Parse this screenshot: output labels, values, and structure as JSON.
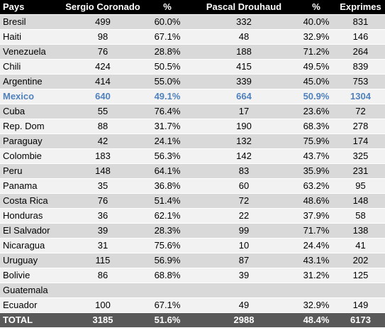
{
  "headers": [
    "Pays",
    "Sergio Coronado",
    "%",
    "Pascal Drouhaud",
    "%",
    "Exprimes"
  ],
  "rows": [
    {
      "pays": "Bresil",
      "sergio": "499",
      "sergio_pct": "60.0%",
      "pascal": "332",
      "pascal_pct": "40.0%",
      "exprimes": "831"
    },
    {
      "pays": "Haiti",
      "sergio": "98",
      "sergio_pct": "67.1%",
      "pascal": "48",
      "pascal_pct": "32.9%",
      "exprimes": "146"
    },
    {
      "pays": "Venezuela",
      "sergio": "76",
      "sergio_pct": "28.8%",
      "pascal": "188",
      "pascal_pct": "71.2%",
      "exprimes": "264"
    },
    {
      "pays": "Chili",
      "sergio": "424",
      "sergio_pct": "50.5%",
      "pascal": "415",
      "pascal_pct": "49.5%",
      "exprimes": "839"
    },
    {
      "pays": "Argentine",
      "sergio": "414",
      "sergio_pct": "55.0%",
      "pascal": "339",
      "pascal_pct": "45.0%",
      "exprimes": "753"
    },
    {
      "pays": "Mexico",
      "sergio": "640",
      "sergio_pct": "49.1%",
      "pascal": "664",
      "pascal_pct": "50.9%",
      "exprimes": "1304",
      "highlight": true
    },
    {
      "pays": "Cuba",
      "sergio": "55",
      "sergio_pct": "76.4%",
      "pascal": "17",
      "pascal_pct": "23.6%",
      "exprimes": "72"
    },
    {
      "pays": "Rep. Dom",
      "sergio": "88",
      "sergio_pct": "31.7%",
      "pascal": "190",
      "pascal_pct": "68.3%",
      "exprimes": "278"
    },
    {
      "pays": "Paraguay",
      "sergio": "42",
      "sergio_pct": "24.1%",
      "pascal": "132",
      "pascal_pct": "75.9%",
      "exprimes": "174"
    },
    {
      "pays": "Colombie",
      "sergio": "183",
      "sergio_pct": "56.3%",
      "pascal": "142",
      "pascal_pct": "43.7%",
      "exprimes": "325"
    },
    {
      "pays": "Peru",
      "sergio": "148",
      "sergio_pct": "64.1%",
      "pascal": "83",
      "pascal_pct": "35.9%",
      "exprimes": "231"
    },
    {
      "pays": "Panama",
      "sergio": "35",
      "sergio_pct": "36.8%",
      "pascal": "60",
      "pascal_pct": "63.2%",
      "exprimes": "95"
    },
    {
      "pays": "Costa Rica",
      "sergio": "76",
      "sergio_pct": "51.4%",
      "pascal": "72",
      "pascal_pct": "48.6%",
      "exprimes": "148"
    },
    {
      "pays": "Honduras",
      "sergio": "36",
      "sergio_pct": "62.1%",
      "pascal": "22",
      "pascal_pct": "37.9%",
      "exprimes": "58"
    },
    {
      "pays": "El Salvador",
      "sergio": "39",
      "sergio_pct": "28.3%",
      "pascal": "99",
      "pascal_pct": "71.7%",
      "exprimes": "138"
    },
    {
      "pays": "Nicaragua",
      "sergio": "31",
      "sergio_pct": "75.6%",
      "pascal": "10",
      "pascal_pct": "24.4%",
      "exprimes": "41"
    },
    {
      "pays": "Uruguay",
      "sergio": "115",
      "sergio_pct": "56.9%",
      "pascal": "87",
      "pascal_pct": "43.1%",
      "exprimes": "202"
    },
    {
      "pays": "Bolivie",
      "sergio": "86",
      "sergio_pct": "68.8%",
      "pascal": "39",
      "pascal_pct": "31.2%",
      "exprimes": "125"
    },
    {
      "pays": "Guatemala",
      "sergio": "",
      "sergio_pct": "",
      "pascal": "",
      "pascal_pct": "",
      "exprimes": ""
    },
    {
      "pays": "Ecuador",
      "sergio": "100",
      "sergio_pct": "67.1%",
      "pascal": "49",
      "pascal_pct": "32.9%",
      "exprimes": "149"
    }
  ],
  "total": {
    "pays": "TOTAL",
    "sergio": "3185",
    "sergio_pct": "51.6%",
    "pascal": "2988",
    "pascal_pct": "48.4%",
    "exprimes": "6173"
  },
  "colors": {
    "header_bg": "#000000",
    "row_dark": "#d9d9d9",
    "row_light": "#f2f2f2",
    "highlight_text": "#4f81bd",
    "total_bg": "#595959"
  }
}
